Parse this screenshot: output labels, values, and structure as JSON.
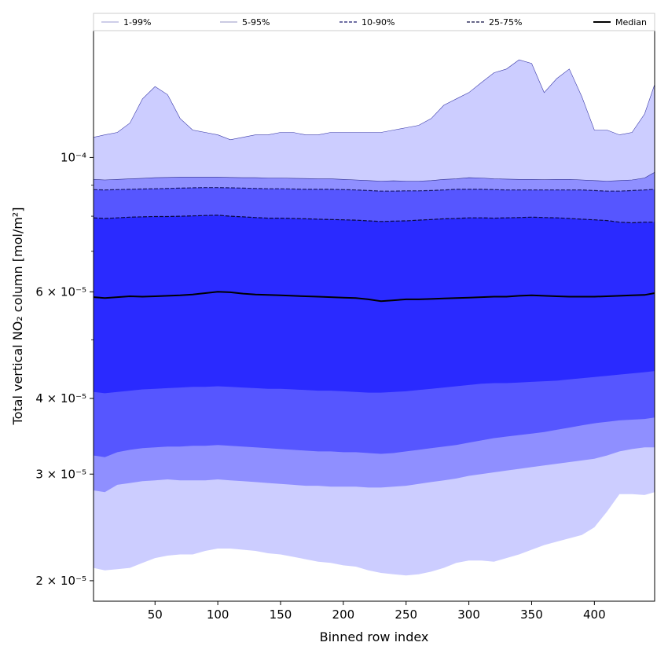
{
  "chart_data": {
    "type": "area",
    "title": "",
    "xlabel": "Binned row index",
    "ylabel": "Total vertical NO₂ column [mol/m²]",
    "yscale": "log",
    "xlim": [
      1,
      448
    ],
    "ylim": [
      1.85e-05,
      0.000162
    ],
    "xticks": [
      50,
      100,
      150,
      200,
      250,
      300,
      350,
      400
    ],
    "yticks": [
      {
        "value": 2e-05,
        "label": "2 × 10⁻⁵"
      },
      {
        "value": 3e-05,
        "label": "3 × 10⁻⁵"
      },
      {
        "value": 4e-05,
        "label": "4 × 10⁻⁵"
      },
      {
        "value": 6e-05,
        "label": "6 × 10⁻⁵"
      },
      {
        "value": 0.0001,
        "label": "10⁻⁴"
      }
    ],
    "legend_position": "top",
    "x": [
      1,
      10,
      20,
      30,
      40,
      50,
      60,
      70,
      80,
      90,
      100,
      110,
      120,
      130,
      140,
      150,
      160,
      170,
      180,
      190,
      200,
      210,
      220,
      230,
      240,
      250,
      260,
      270,
      280,
      290,
      300,
      310,
      320,
      330,
      340,
      350,
      360,
      370,
      380,
      390,
      400,
      410,
      420,
      430,
      440,
      448
    ],
    "bands": [
      {
        "name": "1-99%",
        "color": "#cccdff",
        "line_color": "#3a3aa8",
        "line_style": "solid",
        "lower": [
          2.1e-05,
          2.08e-05,
          2.09e-05,
          2.1e-05,
          2.14e-05,
          2.18e-05,
          2.2e-05,
          2.21e-05,
          2.21e-05,
          2.24e-05,
          2.26e-05,
          2.26e-05,
          2.25e-05,
          2.24e-05,
          2.22e-05,
          2.21e-05,
          2.19e-05,
          2.17e-05,
          2.15e-05,
          2.14e-05,
          2.12e-05,
          2.11e-05,
          2.08e-05,
          2.06e-05,
          2.05e-05,
          2.04e-05,
          2.05e-05,
          2.07e-05,
          2.1e-05,
          2.14e-05,
          2.16e-05,
          2.16e-05,
          2.15e-05,
          2.18e-05,
          2.21e-05,
          2.25e-05,
          2.29e-05,
          2.32e-05,
          2.35e-05,
          2.38e-05,
          2.45e-05,
          2.6e-05,
          2.78e-05,
          2.78e-05,
          2.77e-05,
          2.8e-05
        ],
        "upper": [
          0.000108,
          0.000109,
          0.00011,
          0.000114,
          0.000125,
          0.000131,
          0.000127,
          0.000116,
          0.000111,
          0.00011,
          0.000109,
          0.000107,
          0.000108,
          0.000109,
          0.000109,
          0.00011,
          0.00011,
          0.000109,
          0.000109,
          0.00011,
          0.00011,
          0.00011,
          0.00011,
          0.00011,
          0.000111,
          0.000112,
          0.000113,
          0.000116,
          0.000122,
          0.000125,
          0.000128,
          0.000133,
          0.000138,
          0.00014,
          0.000145,
          0.000143,
          0.000128,
          0.000135,
          0.00014,
          0.000126,
          0.000111,
          0.000111,
          0.000109,
          0.00011,
          0.000118,
          0.000132
        ]
      },
      {
        "name": "5-95%",
        "color": "#8f8fff",
        "line_color": "#2a2a8a",
        "line_style": "solid",
        "lower": [
          2.82e-05,
          2.8e-05,
          2.88e-05,
          2.9e-05,
          2.92e-05,
          2.93e-05,
          2.94e-05,
          2.93e-05,
          2.93e-05,
          2.93e-05,
          2.94e-05,
          2.93e-05,
          2.92e-05,
          2.91e-05,
          2.9e-05,
          2.89e-05,
          2.88e-05,
          2.87e-05,
          2.87e-05,
          2.86e-05,
          2.86e-05,
          2.86e-05,
          2.85e-05,
          2.85e-05,
          2.86e-05,
          2.87e-05,
          2.89e-05,
          2.91e-05,
          2.93e-05,
          2.95e-05,
          2.98e-05,
          3e-05,
          3.02e-05,
          3.04e-05,
          3.06e-05,
          3.08e-05,
          3.1e-05,
          3.12e-05,
          3.14e-05,
          3.16e-05,
          3.18e-05,
          3.22e-05,
          3.27e-05,
          3.3e-05,
          3.32e-05,
          3.32e-05
        ],
        "upper": [
          9.2e-05,
          9.18e-05,
          9.2e-05,
          9.22e-05,
          9.24e-05,
          9.26e-05,
          9.27e-05,
          9.28e-05,
          9.28e-05,
          9.28e-05,
          9.28e-05,
          9.27e-05,
          9.26e-05,
          9.26e-05,
          9.25e-05,
          9.25e-05,
          9.24e-05,
          9.23e-05,
          9.22e-05,
          9.22e-05,
          9.2e-05,
          9.18e-05,
          9.16e-05,
          9.14e-05,
          9.15e-05,
          9.14e-05,
          9.14e-05,
          9.16e-05,
          9.2e-05,
          9.22e-05,
          9.26e-05,
          9.25e-05,
          9.22e-05,
          9.21e-05,
          9.2e-05,
          9.2e-05,
          9.19e-05,
          9.2e-05,
          9.2e-05,
          9.18e-05,
          9.16e-05,
          9.14e-05,
          9.16e-05,
          9.18e-05,
          9.25e-05,
          9.45e-05
        ]
      },
      {
        "name": "10-90%",
        "color": "#5656ff",
        "line_color": "#1a1a6e",
        "line_style": "dashed",
        "lower": [
          3.22e-05,
          3.2e-05,
          3.26e-05,
          3.29e-05,
          3.31e-05,
          3.32e-05,
          3.33e-05,
          3.33e-05,
          3.34e-05,
          3.34e-05,
          3.35e-05,
          3.34e-05,
          3.33e-05,
          3.32e-05,
          3.31e-05,
          3.3e-05,
          3.29e-05,
          3.28e-05,
          3.27e-05,
          3.27e-05,
          3.26e-05,
          3.26e-05,
          3.25e-05,
          3.24e-05,
          3.25e-05,
          3.27e-05,
          3.29e-05,
          3.31e-05,
          3.33e-05,
          3.35e-05,
          3.38e-05,
          3.41e-05,
          3.44e-05,
          3.46e-05,
          3.48e-05,
          3.5e-05,
          3.52e-05,
          3.55e-05,
          3.58e-05,
          3.61e-05,
          3.64e-05,
          3.66e-05,
          3.68e-05,
          3.69e-05,
          3.7e-05,
          3.72e-05
        ],
        "upper": [
          8.85e-05,
          8.84e-05,
          8.85e-05,
          8.86e-05,
          8.87e-05,
          8.88e-05,
          8.89e-05,
          8.9e-05,
          8.91e-05,
          8.92e-05,
          8.92e-05,
          8.91e-05,
          8.9e-05,
          8.89e-05,
          8.88e-05,
          8.88e-05,
          8.87e-05,
          8.86e-05,
          8.86e-05,
          8.86e-05,
          8.85e-05,
          8.84e-05,
          8.82e-05,
          8.8e-05,
          8.8e-05,
          8.81e-05,
          8.81e-05,
          8.82e-05,
          8.84e-05,
          8.86e-05,
          8.86e-05,
          8.86e-05,
          8.85e-05,
          8.84e-05,
          8.84e-05,
          8.84e-05,
          8.84e-05,
          8.84e-05,
          8.84e-05,
          8.84e-05,
          8.82e-05,
          8.8e-05,
          8.8e-05,
          8.82e-05,
          8.84e-05,
          8.86e-05
        ]
      },
      {
        "name": "25-75%",
        "color": "#2a2aff",
        "line_color": "#0a0a40",
        "line_style": "dashed",
        "lower": [
          4.1e-05,
          4.08e-05,
          4.1e-05,
          4.12e-05,
          4.14e-05,
          4.15e-05,
          4.16e-05,
          4.17e-05,
          4.18e-05,
          4.18e-05,
          4.19e-05,
          4.18e-05,
          4.17e-05,
          4.16e-05,
          4.15e-05,
          4.15e-05,
          4.14e-05,
          4.13e-05,
          4.12e-05,
          4.12e-05,
          4.11e-05,
          4.1e-05,
          4.09e-05,
          4.09e-05,
          4.1e-05,
          4.11e-05,
          4.13e-05,
          4.15e-05,
          4.17e-05,
          4.19e-05,
          4.21e-05,
          4.23e-05,
          4.24e-05,
          4.24e-05,
          4.25e-05,
          4.26e-05,
          4.27e-05,
          4.28e-05,
          4.3e-05,
          4.32e-05,
          4.34e-05,
          4.36e-05,
          4.38e-05,
          4.4e-05,
          4.42e-05,
          4.44e-05
        ],
        "upper": [
          7.95e-05,
          7.93e-05,
          7.95e-05,
          7.97e-05,
          7.98e-05,
          7.99e-05,
          7.99e-05,
          8e-05,
          8.01e-05,
          8.02e-05,
          8.03e-05,
          8e-05,
          7.98e-05,
          7.96e-05,
          7.94e-05,
          7.94e-05,
          7.93e-05,
          7.92e-05,
          7.91e-05,
          7.9e-05,
          7.89e-05,
          7.88e-05,
          7.86e-05,
          7.84e-05,
          7.85e-05,
          7.86e-05,
          7.88e-05,
          7.9e-05,
          7.92e-05,
          7.93e-05,
          7.95e-05,
          7.95e-05,
          7.94e-05,
          7.95e-05,
          7.96e-05,
          7.97e-05,
          7.96e-05,
          7.95e-05,
          7.93e-05,
          7.91e-05,
          7.89e-05,
          7.87e-05,
          7.82e-05,
          7.8e-05,
          7.82e-05,
          7.82e-05
        ]
      }
    ],
    "median": {
      "name": "Median",
      "color": "#000000",
      "values": [
        5.88e-05,
        5.86e-05,
        5.88e-05,
        5.9e-05,
        5.89e-05,
        5.9e-05,
        5.91e-05,
        5.92e-05,
        5.94e-05,
        5.97e-05,
        6e-05,
        5.99e-05,
        5.96e-05,
        5.94e-05,
        5.93e-05,
        5.92e-05,
        5.91e-05,
        5.9e-05,
        5.89e-05,
        5.88e-05,
        5.87e-05,
        5.86e-05,
        5.83e-05,
        5.79e-05,
        5.81e-05,
        5.83e-05,
        5.83e-05,
        5.84e-05,
        5.85e-05,
        5.86e-05,
        5.87e-05,
        5.88e-05,
        5.89e-05,
        5.89e-05,
        5.91e-05,
        5.92e-05,
        5.91e-05,
        5.9e-05,
        5.89e-05,
        5.89e-05,
        5.89e-05,
        5.9e-05,
        5.91e-05,
        5.92e-05,
        5.93e-05,
        5.97e-05
      ]
    }
  }
}
